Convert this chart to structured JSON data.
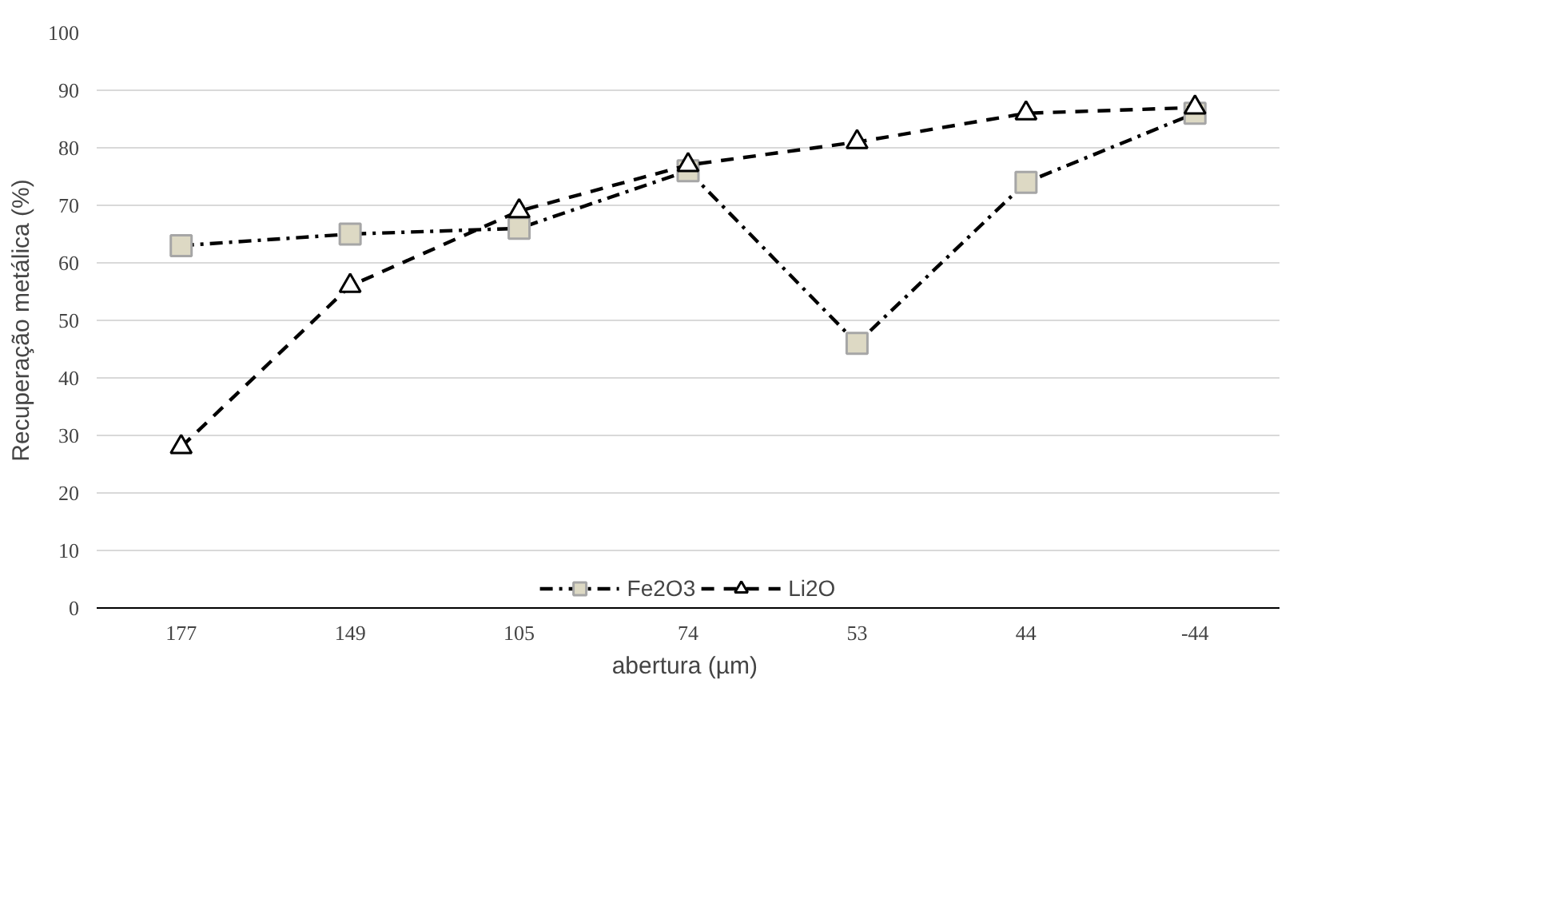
{
  "chart_data": {
    "type": "line",
    "ylabel": "Recuperação metálica (%)",
    "xlabel": "abertura  (µm)",
    "categories": [
      "177",
      "149",
      "105",
      "74",
      "53",
      "44",
      "-44"
    ],
    "ylim": [
      0,
      100
    ],
    "yticks": [
      0,
      10,
      20,
      30,
      40,
      50,
      60,
      70,
      80,
      90,
      100
    ],
    "grid": "y",
    "legend": "bottom",
    "series": [
      {
        "name": "Fe2O3",
        "color": "#000000",
        "marker": "square",
        "line_style": "dashdot",
        "values": [
          63,
          65,
          66,
          76,
          46,
          74,
          86
        ]
      },
      {
        "name": "Li2O",
        "color": "#000000",
        "marker": "triangle",
        "line_style": "dashed",
        "values": [
          28,
          56,
          69,
          77,
          81,
          86,
          87
        ]
      }
    ]
  }
}
